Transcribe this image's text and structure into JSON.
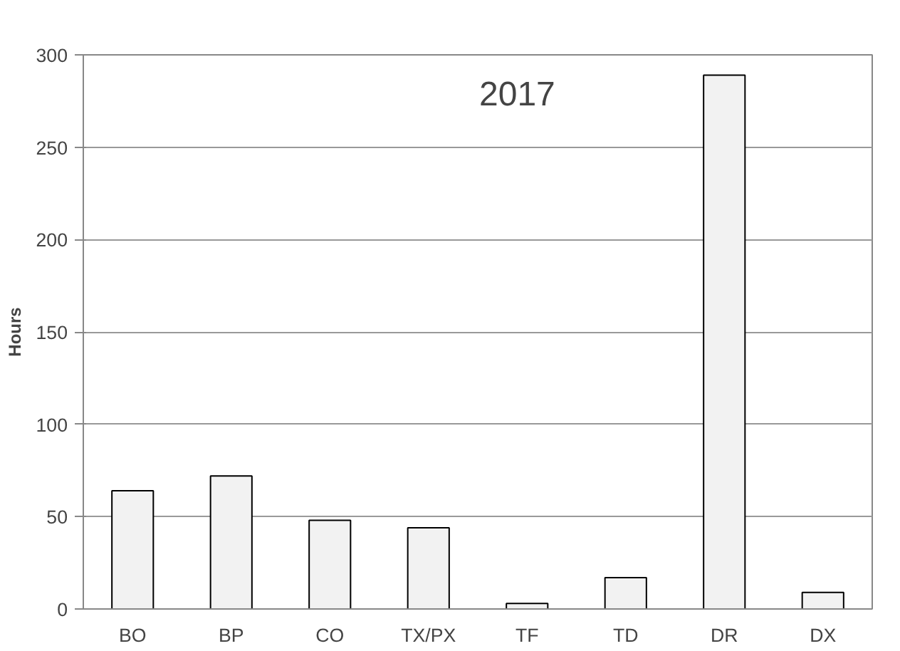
{
  "chart_data": {
    "type": "bar",
    "annotations": [
      "2017"
    ],
    "ylabel": "Hours",
    "categories": [
      "BO",
      "BP",
      "CO",
      "TX/PX",
      "TF",
      "TD",
      "DR",
      "DX"
    ],
    "values": [
      64,
      72,
      48,
      44,
      3,
      17,
      289,
      9
    ],
    "color": "#f2f2f2",
    "ylim": [
      0,
      300
    ],
    "yticks": [
      0,
      50,
      100,
      150,
      200,
      250,
      300
    ],
    "grid": "y"
  }
}
